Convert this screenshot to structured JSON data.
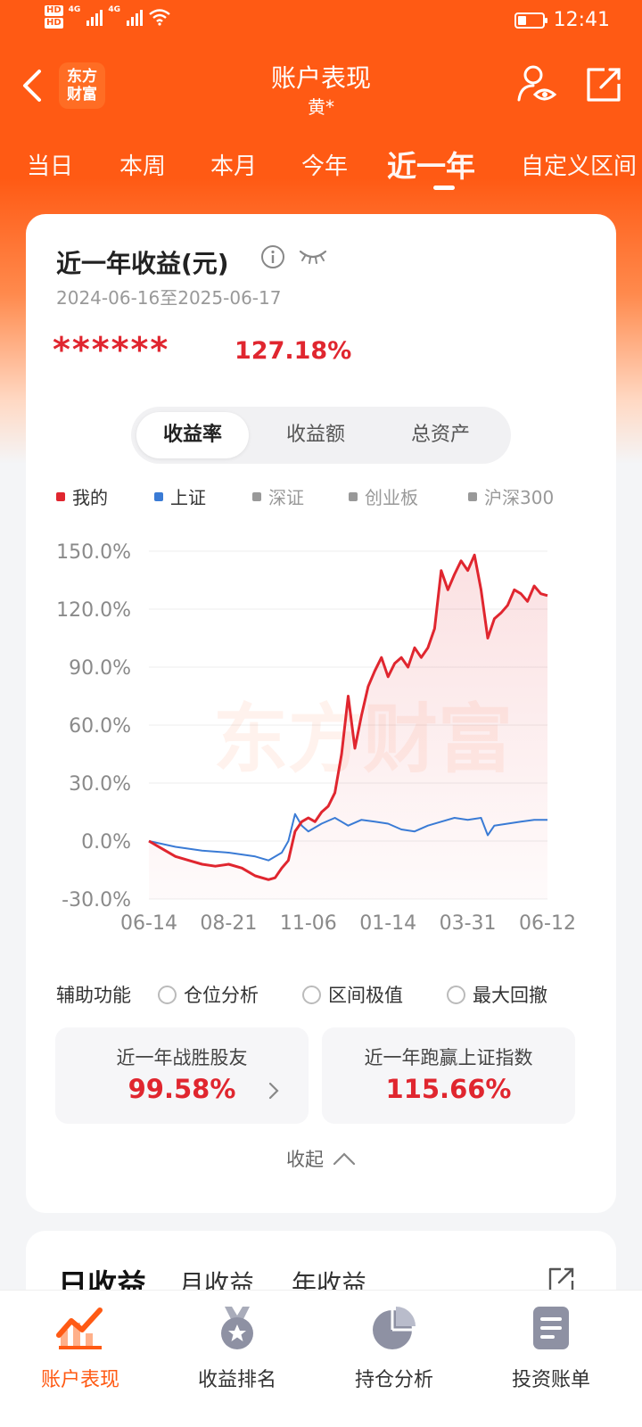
{
  "status_bar": {
    "hd1": "HD",
    "hd2": "HD",
    "net1": "4G",
    "net2": "4G",
    "time": "12:41"
  },
  "nav": {
    "logo_line1": "东方",
    "logo_line2": "财富",
    "title": "账户表现",
    "subtitle": "黄*"
  },
  "period_tabs": [
    {
      "label": "当日"
    },
    {
      "label": "本周"
    },
    {
      "label": "本月"
    },
    {
      "label": "今年"
    },
    {
      "label": "近一年"
    },
    {
      "label": "自定义区间"
    }
  ],
  "summary": {
    "title": "近一年收益(元)",
    "date_range": "2024-06-16至2025-06-17",
    "masked_amount": "******",
    "return_ratio": "127.18%"
  },
  "segments": [
    {
      "label": "收益率"
    },
    {
      "label": "收益额"
    },
    {
      "label": "总资产"
    }
  ],
  "legend": [
    {
      "label": "我的",
      "color": "#e0262f"
    },
    {
      "label": "上证",
      "color": "#3a7bd5"
    },
    {
      "label": "深证",
      "color": "#999999"
    },
    {
      "label": "创业板",
      "color": "#999999"
    },
    {
      "label": "沪深300",
      "color": "#999999"
    }
  ],
  "watermark": "东方财富",
  "chart_data": {
    "type": "line",
    "xlabel": "",
    "ylabel": "",
    "ylim": [
      -30,
      150
    ],
    "y_ticks": [
      "150.0%",
      "120.0%",
      "90.0%",
      "60.0%",
      "30.0%",
      "0.0%",
      "-30.0%"
    ],
    "x_ticks": [
      "06-14",
      "08-21",
      "11-06",
      "01-14",
      "03-31",
      "06-12"
    ],
    "series": [
      {
        "name": "我的",
        "color": "#e0262f",
        "points": [
          [
            0,
            0
          ],
          [
            2,
            -4
          ],
          [
            4,
            -8
          ],
          [
            6,
            -10
          ],
          [
            8,
            -12
          ],
          [
            10,
            -13
          ],
          [
            12,
            -12
          ],
          [
            14,
            -14
          ],
          [
            15,
            -16
          ],
          [
            16,
            -18
          ],
          [
            18,
            -20
          ],
          [
            19,
            -19
          ],
          [
            20,
            -14
          ],
          [
            21,
            -10
          ],
          [
            22,
            5
          ],
          [
            23,
            10
          ],
          [
            24,
            12
          ],
          [
            25,
            10
          ],
          [
            26,
            15
          ],
          [
            27,
            18
          ],
          [
            28,
            25
          ],
          [
            29,
            45
          ],
          [
            30,
            75
          ],
          [
            31,
            48
          ],
          [
            32,
            65
          ],
          [
            33,
            80
          ],
          [
            34,
            88
          ],
          [
            35,
            95
          ],
          [
            36,
            85
          ],
          [
            37,
            92
          ],
          [
            38,
            95
          ],
          [
            39,
            90
          ],
          [
            40,
            100
          ],
          [
            41,
            95
          ],
          [
            42,
            100
          ],
          [
            43,
            110
          ],
          [
            44,
            140
          ],
          [
            45,
            130
          ],
          [
            46,
            138
          ],
          [
            47,
            145
          ],
          [
            48,
            140
          ],
          [
            49,
            148
          ],
          [
            50,
            130
          ],
          [
            51,
            105
          ],
          [
            52,
            115
          ],
          [
            53,
            118
          ],
          [
            54,
            122
          ],
          [
            55,
            130
          ],
          [
            56,
            128
          ],
          [
            57,
            124
          ],
          [
            58,
            132
          ],
          [
            59,
            128
          ],
          [
            60,
            127
          ]
        ]
      },
      {
        "name": "上证",
        "color": "#3a7bd5",
        "points": [
          [
            0,
            0
          ],
          [
            4,
            -3
          ],
          [
            8,
            -5
          ],
          [
            12,
            -6
          ],
          [
            16,
            -8
          ],
          [
            18,
            -10
          ],
          [
            20,
            -6
          ],
          [
            21,
            0
          ],
          [
            22,
            14
          ],
          [
            23,
            8
          ],
          [
            24,
            5
          ],
          [
            26,
            9
          ],
          [
            28,
            12
          ],
          [
            30,
            8
          ],
          [
            32,
            11
          ],
          [
            34,
            10
          ],
          [
            36,
            9
          ],
          [
            38,
            6
          ],
          [
            40,
            5
          ],
          [
            42,
            8
          ],
          [
            44,
            10
          ],
          [
            46,
            12
          ],
          [
            48,
            11
          ],
          [
            50,
            12
          ],
          [
            51,
            3
          ],
          [
            52,
            8
          ],
          [
            54,
            9
          ],
          [
            56,
            10
          ],
          [
            58,
            11
          ],
          [
            60,
            11
          ]
        ]
      }
    ]
  },
  "aux": {
    "label": "辅助功能",
    "options": [
      {
        "label": "仓位分析"
      },
      {
        "label": "区间极值"
      },
      {
        "label": "最大回撤"
      }
    ]
  },
  "stats": {
    "beat_friends_label": "近一年战胜股友",
    "beat_friends_value": "99.58%",
    "beat_index_label": "近一年跑赢上证指数",
    "beat_index_value": "115.66%"
  },
  "collapse_label": "收起",
  "earnings_tabs": [
    {
      "label": "日收益"
    },
    {
      "label": "月收益"
    },
    {
      "label": "年收益"
    }
  ],
  "bottom_nav": [
    {
      "label": "账户表现",
      "active": true
    },
    {
      "label": "收益排名",
      "active": false
    },
    {
      "label": "持仓分析",
      "active": false
    },
    {
      "label": "投资账单",
      "active": false
    }
  ]
}
